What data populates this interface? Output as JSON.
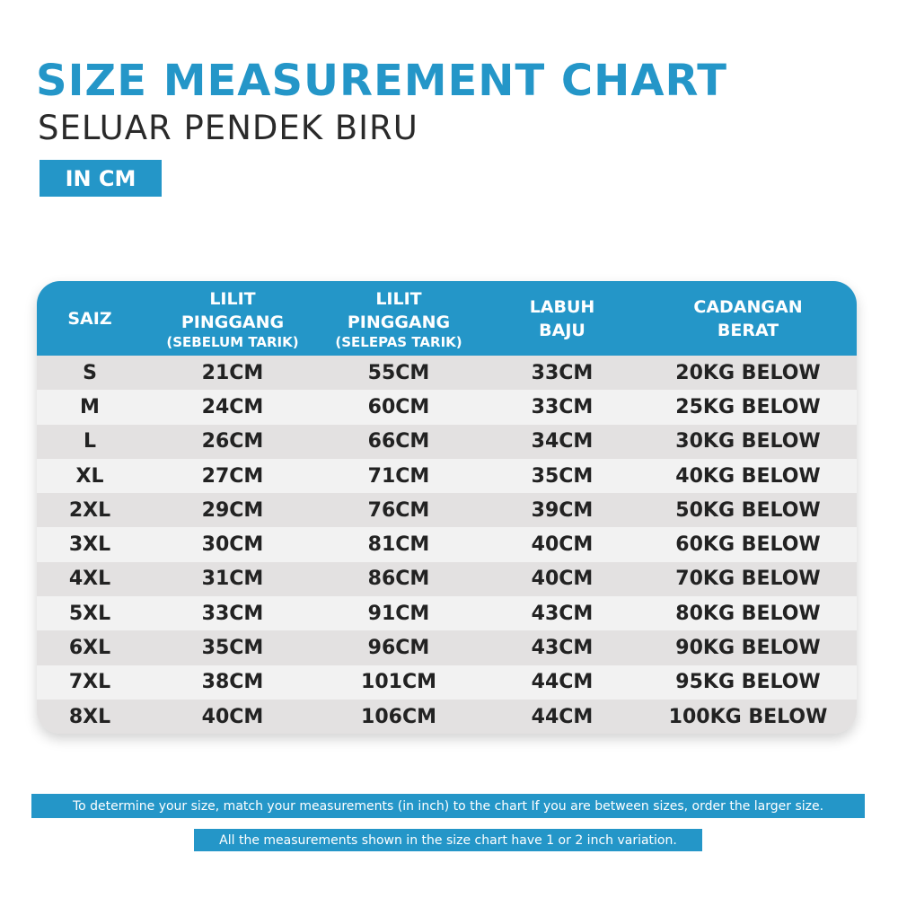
{
  "header": {
    "title": "SIZE MEASUREMENT CHART",
    "subtitle": "SELUAR PENDEK BIRU",
    "unit_badge": "IN CM"
  },
  "table": {
    "columns": [
      {
        "lines": [
          "SAIZ"
        ],
        "sub": ""
      },
      {
        "lines": [
          "LILIT",
          "PINGGANG"
        ],
        "sub": "(SEBELUM TARIK)"
      },
      {
        "lines": [
          "LILIT",
          "PINGGANG"
        ],
        "sub": "(SELEPAS TARIK)"
      },
      {
        "lines": [
          "LABUH",
          "BAJU"
        ],
        "sub": ""
      },
      {
        "lines": [
          "CADANGAN",
          "BERAT"
        ],
        "sub": ""
      }
    ],
    "rows": [
      [
        "S",
        "21CM",
        "55CM",
        "33CM",
        "20KG BELOW"
      ],
      [
        "M",
        "24CM",
        "60CM",
        "33CM",
        "25KG BELOW"
      ],
      [
        "L",
        "26CM",
        "66CM",
        "34CM",
        "30KG BELOW"
      ],
      [
        "XL",
        "27CM",
        "71CM",
        "35CM",
        "40KG BELOW"
      ],
      [
        "2XL",
        "29CM",
        "76CM",
        "39CM",
        "50KG BELOW"
      ],
      [
        "3XL",
        "30CM",
        "81CM",
        "40CM",
        "60KG BELOW"
      ],
      [
        "4XL",
        "31CM",
        "86CM",
        "40CM",
        "70KG BELOW"
      ],
      [
        "5XL",
        "33CM",
        "91CM",
        "43CM",
        "80KG BELOW"
      ],
      [
        "6XL",
        "35CM",
        "96CM",
        "43CM",
        "90KG BELOW"
      ],
      [
        "7XL",
        "38CM",
        "101CM",
        "44CM",
        "95KG BELOW"
      ],
      [
        "8XL",
        "40CM",
        "106CM",
        "44CM",
        "100KG BELOW"
      ]
    ]
  },
  "notes": {
    "size_advice": "To determine your size, match your measurements (in inch) to the chart If you are between sizes, order the larger size.",
    "variation": "All the measurements shown in the size chart have 1 or 2 inch variation."
  },
  "colors": {
    "accent": "#2496c8",
    "row_odd": "#e3e1e1",
    "row_even": "#f2f2f2",
    "text_dark": "#222222"
  }
}
